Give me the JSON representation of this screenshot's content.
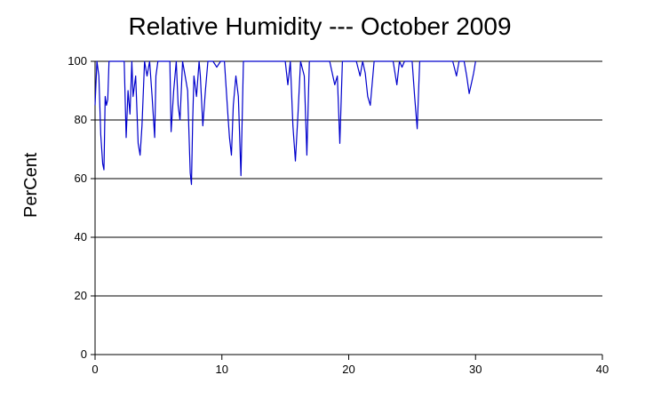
{
  "chart_data": {
    "type": "line",
    "title": "Relative Humidity --- October 2009",
    "xlabel": "",
    "ylabel": "PerCent",
    "xlim": [
      0,
      40
    ],
    "ylim": [
      0,
      100
    ],
    "x_ticks": [
      "0",
      "10",
      "20",
      "30",
      "40"
    ],
    "y_ticks": [
      "0",
      "20",
      "40",
      "60",
      "80",
      "100"
    ],
    "grid": "horizontal",
    "line_color": "#0000cc",
    "series": [
      {
        "x": [
          0,
          0.15,
          0.3,
          0.45,
          0.6,
          0.7,
          0.8,
          0.9,
          1.0,
          1.1,
          1.2,
          1.4,
          1.6,
          1.9,
          2.1,
          2.3,
          2.45,
          2.6,
          2.75,
          2.9,
          3.0,
          3.2,
          3.4,
          3.55,
          3.7,
          3.9,
          4.1,
          4.3,
          4.5,
          4.7,
          4.8,
          4.95,
          5.1,
          5.3,
          5.6,
          5.9,
          6.0,
          6.2,
          6.4,
          6.55,
          6.7,
          6.9,
          7.1,
          7.3,
          7.5,
          7.6,
          7.7,
          7.8,
          8.0,
          8.2,
          8.3,
          8.5,
          8.7,
          8.9,
          9.1,
          9.3,
          9.6,
          9.9,
          10.2,
          10.5,
          10.6,
          10.75,
          10.9,
          11.1,
          11.3,
          11.5,
          11.7,
          11.9,
          12.1,
          12.5,
          13.0,
          13.5,
          14.0,
          14.5,
          15.0,
          15.2,
          15.4,
          15.6,
          15.8,
          16.0,
          16.2,
          16.5,
          16.7,
          16.9,
          17.1,
          17.5,
          18.0,
          18.5,
          18.9,
          19.1,
          19.3,
          19.5,
          19.7,
          20.0,
          20.3,
          20.6,
          20.9,
          21.1,
          21.3,
          21.5,
          21.7,
          22.0,
          22.5,
          23.0,
          23.5,
          23.8,
          24.0,
          24.2,
          24.4,
          24.6,
          24.8,
          25.0,
          25.2,
          25.4,
          25.6,
          25.8,
          26.2,
          26.8,
          27.5,
          28.2,
          28.5,
          28.7,
          28.9,
          29.1,
          29.3,
          29.5,
          29.7,
          29.85,
          30.0
        ],
        "y": [
          85,
          100,
          95,
          75,
          65,
          63,
          88,
          85,
          87,
          100,
          100,
          100,
          100,
          100,
          100,
          100,
          74,
          90,
          82,
          100,
          88,
          95,
          72,
          68,
          78,
          100,
          95,
          100,
          88,
          74,
          95,
          100,
          100,
          100,
          100,
          100,
          76,
          90,
          100,
          85,
          80,
          100,
          95,
          90,
          62,
          58,
          80,
          95,
          88,
          100,
          95,
          78,
          90,
          100,
          100,
          100,
          98,
          100,
          100,
          80,
          74,
          68,
          85,
          95,
          88,
          61,
          100,
          100,
          100,
          100,
          100,
          100,
          100,
          100,
          100,
          92,
          100,
          78,
          66,
          82,
          100,
          95,
          68,
          100,
          100,
          100,
          100,
          100,
          92,
          95,
          72,
          100,
          100,
          100,
          100,
          100,
          95,
          100,
          96,
          88,
          85,
          100,
          100,
          100,
          100,
          92,
          100,
          98,
          100,
          100,
          100,
          100,
          88,
          77,
          100,
          100,
          100,
          100,
          100,
          100,
          95,
          100,
          100,
          100,
          95,
          89,
          93,
          96,
          100
        ]
      }
    ]
  }
}
